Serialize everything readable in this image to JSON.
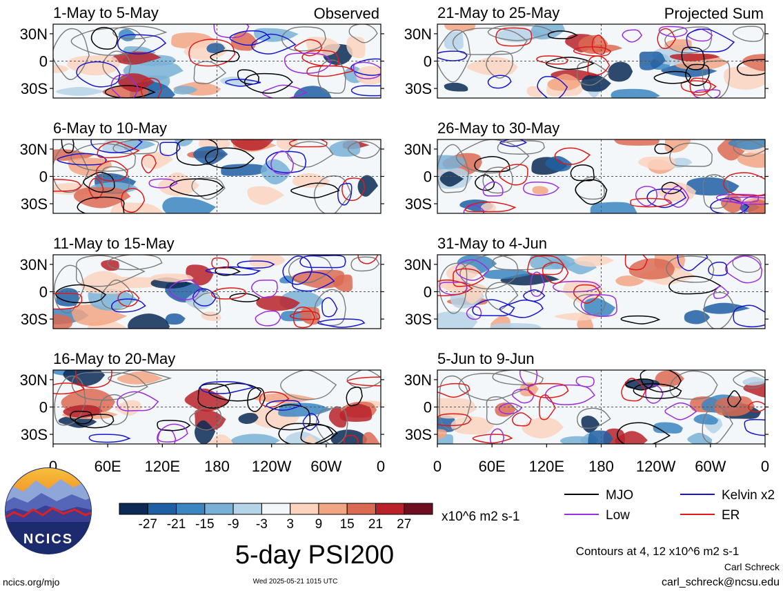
{
  "chart_data": {
    "type": "heatmap",
    "title": "5-day PSI200",
    "units_label": "x10^6 m2 s-1",
    "contour_note": "Contours at 4, 12 x10^6 m2 s-1",
    "left_column_label": "Observed",
    "right_column_label": "Projected Sum",
    "panels_left": [
      "1-May to 5-May",
      "6-May to 10-May",
      "11-May to 15-May",
      "16-May to 20-May"
    ],
    "panels_right": [
      "21-May to 25-May",
      "26-May to 30-May",
      "31-May to 4-Jun",
      "5-Jun to 9-Jun"
    ],
    "y_ticks": [
      "30N",
      "0",
      "30S"
    ],
    "x_ticks": [
      "0",
      "60E",
      "120E",
      "180",
      "120W",
      "60W",
      "0"
    ],
    "colorbar": {
      "labels": [
        "-27",
        "-21",
        "-15",
        "-9",
        "-3",
        "3",
        "9",
        "15",
        "21",
        "27"
      ],
      "colors": [
        "#0b2a55",
        "#1f5fa3",
        "#3b85c0",
        "#79b1d6",
        "#b5d4e8",
        "#f4f7fa",
        "#fbd3bf",
        "#f2a583",
        "#db6a52",
        "#b9222a",
        "#6e0f1f"
      ]
    },
    "legend": [
      {
        "name": "MJO",
        "color": "#000000"
      },
      {
        "name": "Kelvin x2",
        "color": "#1515d0"
      },
      {
        "name": "Low",
        "color": "#9a2de0"
      },
      {
        "name": "ER",
        "color": "#e01818"
      }
    ]
  },
  "footer": {
    "site": "ncics.org/mjo",
    "timestamp": "Wed 2025-05-21 1015 UTC",
    "author": "Carl Schreck",
    "email": "carl_schreck@ncsu.edu"
  },
  "logo": {
    "text": "NCICS"
  }
}
